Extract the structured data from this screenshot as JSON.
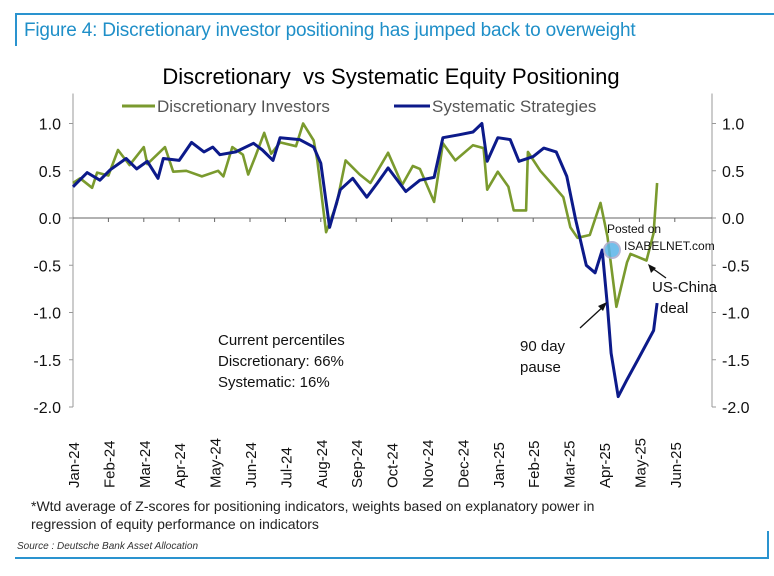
{
  "figure_title": "Figure 4: Discretionary investor positioning has jumped back to overweight",
  "footnote_line1": "*Wtd average of Z-scores for positioning indicators, weights based on explanatory power in",
  "footnote_line2": "regression of equity performance on indicators",
  "source": "Source : Deutsche Bank Asset Allocation",
  "watermark": {
    "line1": "Posted on",
    "line2": "ISABELNET.com"
  },
  "colors": {
    "discretionary": "#7a9a2e",
    "systematic": "#0c1a8a",
    "frame": "#2a93cf"
  },
  "chart_data": {
    "type": "line",
    "title": "Discretionary  vs Systematic Equity Positioning",
    "xlabel": "",
    "ylabel": "",
    "ylim": [
      -2.0,
      1.0
    ],
    "yticks": [
      "1.0",
      "0.5",
      "0.0",
      "-0.5",
      "-1.0",
      "-1.5",
      "-2.0"
    ],
    "ytick_values": [
      1.0,
      0.5,
      0.0,
      -0.5,
      -1.0,
      -1.5,
      -2.0
    ],
    "xtick_labels": [
      "Jan-24",
      "Feb-24",
      "Mar-24",
      "Apr-24",
      "May-24",
      "Jun-24",
      "Jul-24",
      "Aug-24",
      "Sep-24",
      "Oct-24",
      "Nov-24",
      "Dec-24",
      "Jan-25",
      "Feb-25",
      "Mar-25",
      "Apr-25",
      "May-25",
      "Jun-25"
    ],
    "x_unit": "months since Jan-24",
    "legend": "top",
    "grid": false,
    "series": [
      {
        "name": "Discretionary Investors",
        "x": [
          0,
          0.2,
          0.54,
          0.68,
          1.0,
          1.27,
          1.6,
          2.0,
          2.1,
          2.6,
          2.83,
          3.2,
          3.64,
          4.1,
          4.25,
          4.5,
          4.8,
          4.95,
          5.15,
          5.4,
          5.6,
          5.85,
          6.3,
          6.5,
          6.8,
          6.9,
          7.15,
          7.45,
          7.7,
          8.1,
          8.4,
          8.9,
          9.3,
          9.6,
          9.8,
          10.2,
          10.45,
          10.8,
          11.3,
          11.6,
          11.7,
          12.0,
          12.3,
          12.45,
          12.8,
          12.85,
          13.2,
          13.55,
          13.85,
          14.05,
          14.25,
          14.6,
          14.9,
          15.1,
          15.35,
          15.65,
          15.75,
          16.2,
          16.4,
          16.5
        ],
        "values": [
          0.37,
          0.42,
          0.32,
          0.48,
          0.45,
          0.72,
          0.56,
          0.75,
          0.57,
          0.75,
          0.49,
          0.5,
          0.44,
          0.5,
          0.44,
          0.75,
          0.67,
          0.46,
          0.65,
          0.9,
          0.68,
          0.8,
          0.76,
          1.0,
          0.82,
          0.61,
          -0.15,
          0.15,
          0.61,
          0.46,
          0.37,
          0.69,
          0.35,
          0.55,
          0.52,
          0.17,
          0.79,
          0.61,
          0.77,
          0.74,
          0.3,
          0.49,
          0.33,
          0.08,
          0.08,
          0.7,
          0.5,
          0.35,
          0.22,
          -0.1,
          -0.21,
          -0.18,
          0.16,
          -0.2,
          -0.94,
          -0.47,
          -0.38,
          -0.45,
          -0.16,
          0.37
        ]
      },
      {
        "name": "Systematic Strategies",
        "x": [
          0,
          0.4,
          0.76,
          1.05,
          1.5,
          1.8,
          2.1,
          2.4,
          2.55,
          3.0,
          3.35,
          3.7,
          3.95,
          4.15,
          4.6,
          5.1,
          5.35,
          5.65,
          5.85,
          6.4,
          6.8,
          7.0,
          7.25,
          7.55,
          7.9,
          8.3,
          8.6,
          8.9,
          9.4,
          9.8,
          10.2,
          10.45,
          10.9,
          11.3,
          11.55,
          11.7,
          12.0,
          12.35,
          12.6,
          13.0,
          13.3,
          13.65,
          13.95,
          14.2,
          14.5,
          14.75,
          14.95,
          15.1,
          15.2,
          15.4,
          15.65,
          16.0,
          16.4,
          16.5
        ],
        "values": [
          0.33,
          0.48,
          0.4,
          0.51,
          0.63,
          0.52,
          0.6,
          0.42,
          0.63,
          0.61,
          0.8,
          0.7,
          0.75,
          0.67,
          0.7,
          0.79,
          0.72,
          0.61,
          0.85,
          0.83,
          0.75,
          0.58,
          -0.1,
          0.3,
          0.42,
          0.22,
          0.37,
          0.53,
          0.28,
          0.4,
          0.43,
          0.85,
          0.88,
          0.91,
          1.0,
          0.6,
          0.85,
          0.83,
          0.6,
          0.65,
          0.74,
          0.7,
          0.44,
          -0.02,
          -0.5,
          -0.58,
          -0.34,
          -0.94,
          -1.43,
          -1.89,
          -1.71,
          -1.47,
          -1.19,
          -0.9
        ]
      }
    ],
    "annotations": {
      "percentiles_title": "Current percentiles",
      "percentiles_disc": "Discretionary: 66%",
      "percentiles_sys": "Systematic: 16%",
      "pause_line1": "90 day",
      "pause_line2": "pause",
      "deal_line1": "US-China",
      "deal_line2": "deal"
    }
  }
}
